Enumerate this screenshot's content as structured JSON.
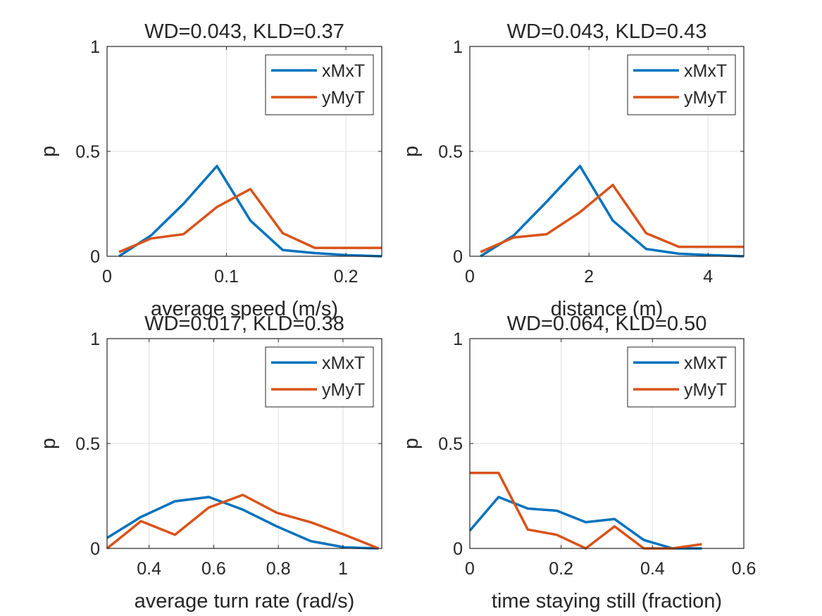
{
  "figure": {
    "background": "#ffffff"
  },
  "series_colors": {
    "xMxT": "#0072BD",
    "yMyT": "#D95319"
  },
  "chart_data": [
    {
      "type": "line",
      "title": "WD=0.043, KLD=0.37",
      "xlabel": "average speed (m/s)",
      "ylabel": "p",
      "xlim": [
        0,
        0.23
      ],
      "ylim": [
        0,
        1
      ],
      "xticks": [
        0,
        0.1,
        0.2
      ],
      "xtick_labels": [
        "0",
        "0.1",
        "0.2"
      ],
      "yticks": [
        0,
        0.5,
        1
      ],
      "ytick_labels": [
        "0",
        "0.5",
        "1"
      ],
      "grid": true,
      "legend": "top-right",
      "series": [
        {
          "name": "xMxT",
          "color": "#0072BD",
          "x": [
            0.01,
            0.037,
            0.064,
            0.092,
            0.12,
            0.147,
            0.174,
            0.202,
            0.23
          ],
          "y": [
            0.0,
            0.1,
            0.25,
            0.43,
            0.17,
            0.03,
            0.015,
            0.005,
            0.0
          ]
        },
        {
          "name": "yMyT",
          "color": "#D95319",
          "x": [
            0.01,
            0.037,
            0.064,
            0.092,
            0.12,
            0.147,
            0.174,
            0.202,
            0.23
          ],
          "y": [
            0.02,
            0.085,
            0.105,
            0.235,
            0.32,
            0.11,
            0.04,
            0.04,
            0.04
          ]
        }
      ]
    },
    {
      "type": "line",
      "title": "WD=0.043, KLD=0.43",
      "xlabel": "distance (m)",
      "ylabel": "p",
      "xlim": [
        0,
        4.6
      ],
      "ylim": [
        0,
        1
      ],
      "xticks": [
        0,
        2,
        4
      ],
      "xtick_labels": [
        "0",
        "2",
        "4"
      ],
      "yticks": [
        0,
        0.5,
        1
      ],
      "ytick_labels": [
        "0",
        "0.5",
        "1"
      ],
      "grid": true,
      "legend": "top-right",
      "series": [
        {
          "name": "xMxT",
          "color": "#0072BD",
          "x": [
            0.18,
            0.74,
            1.29,
            1.85,
            2.4,
            2.96,
            3.51,
            4.07,
            4.6
          ],
          "y": [
            0.0,
            0.1,
            0.26,
            0.43,
            0.17,
            0.035,
            0.012,
            0.005,
            0.0
          ]
        },
        {
          "name": "yMyT",
          "color": "#D95319",
          "x": [
            0.18,
            0.74,
            1.29,
            1.85,
            2.4,
            2.96,
            3.51,
            4.07,
            4.6
          ],
          "y": [
            0.02,
            0.09,
            0.105,
            0.21,
            0.34,
            0.11,
            0.045,
            0.045,
            0.045
          ]
        }
      ]
    },
    {
      "type": "line",
      "title": "WD=0.017, KLD=0.38",
      "xlabel": "average turn rate (rad/s)",
      "ylabel": "p",
      "xlim": [
        0.27,
        1.12
      ],
      "ylim": [
        0,
        1
      ],
      "xticks": [
        0.4,
        0.6,
        0.8,
        1
      ],
      "xtick_labels": [
        "0.4",
        "0.6",
        "0.8",
        "1"
      ],
      "yticks": [
        0,
        0.5,
        1
      ],
      "ytick_labels": [
        "0",
        "0.5",
        "1"
      ],
      "grid": true,
      "legend": "top-right",
      "series": [
        {
          "name": "xMxT",
          "color": "#0072BD",
          "x": [
            0.27,
            0.375,
            0.48,
            0.585,
            0.69,
            0.795,
            0.9,
            1.005,
            1.11
          ],
          "y": [
            0.05,
            0.15,
            0.225,
            0.245,
            0.185,
            0.105,
            0.035,
            0.005,
            0.0
          ]
        },
        {
          "name": "yMyT",
          "color": "#D95319",
          "x": [
            0.27,
            0.375,
            0.48,
            0.585,
            0.69,
            0.795,
            0.9,
            1.005,
            1.11
          ],
          "y": [
            0.0,
            0.13,
            0.065,
            0.195,
            0.255,
            0.17,
            0.125,
            0.065,
            0.0
          ]
        }
      ]
    },
    {
      "type": "line",
      "title": "WD=0.064, KLD=0.50",
      "xlabel": "time staying still (fraction)",
      "ylabel": "p",
      "xlim": [
        0,
        0.6
      ],
      "ylim": [
        0,
        1
      ],
      "xticks": [
        0,
        0.2,
        0.4,
        0.6
      ],
      "xtick_labels": [
        "0",
        "0.2",
        "0.4",
        "0.6"
      ],
      "yticks": [
        0,
        0.5,
        1
      ],
      "ytick_labels": [
        "0",
        "0.5",
        "1"
      ],
      "grid": true,
      "legend": "top-right",
      "series": [
        {
          "name": "xMxT",
          "color": "#0072BD",
          "x": [
            0,
            0.063,
            0.127,
            0.19,
            0.254,
            0.317,
            0.381,
            0.444,
            0.508
          ],
          "y": [
            0.085,
            0.245,
            0.19,
            0.18,
            0.125,
            0.14,
            0.04,
            0.0,
            0.0
          ]
        },
        {
          "name": "yMyT",
          "color": "#D95319",
          "x": [
            0,
            0.063,
            0.127,
            0.19,
            0.254,
            0.317,
            0.381,
            0.444,
            0.508
          ],
          "y": [
            0.36,
            0.36,
            0.09,
            0.065,
            0.0,
            0.105,
            0.0,
            0.0,
            0.02
          ]
        }
      ]
    }
  ]
}
